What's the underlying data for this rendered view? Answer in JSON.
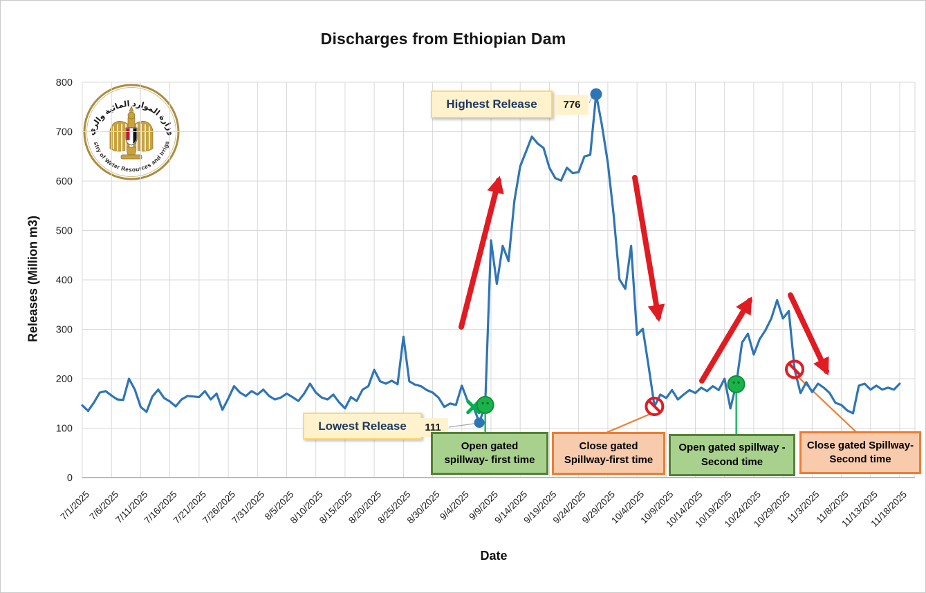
{
  "page": {
    "title": "Discharges from Ethiopian Dam"
  },
  "logo": {
    "name": "ministry-of-water-resources-and-irrigation-seal",
    "arabic": "وزارة الموارد المائية والري",
    "english": "· Ministry of Water Resources and Irrigation ·"
  },
  "chart_data": {
    "type": "line",
    "title": "Discharges from Ethiopian Dam",
    "xlabel": "Date",
    "ylabel": "Releases (Million m3)",
    "ylim": [
      0,
      800
    ],
    "ytick_step": 100,
    "ytick_labels": [
      "0",
      "100",
      "200",
      "300",
      "400",
      "500",
      "600",
      "700",
      "800"
    ],
    "grid": true,
    "line_color": "#2e75b6",
    "start_date": "7/1/2025",
    "end_date": "11/18/2025",
    "frequency": "daily",
    "x_tick_every_days": 5,
    "x_tick_labels": [
      "7/1/2025",
      "7/6/2025",
      "7/11/2025",
      "7/16/2025",
      "7/21/2025",
      "7/26/2025",
      "7/31/2025",
      "8/5/2025",
      "8/10/2025",
      "8/15/2025",
      "8/20/2025",
      "8/25/2025",
      "8/30/2025",
      "9/4/2025",
      "9/9/2025",
      "9/14/2025",
      "9/19/2025",
      "9/24/2025",
      "9/29/2025",
      "10/4/2025",
      "10/9/2025",
      "10/14/2025",
      "10/19/2025",
      "10/24/2025",
      "10/29/2025",
      "11/3/2025",
      "11/8/2025",
      "11/13/2025",
      "11/18/2025"
    ],
    "values": [
      146,
      135,
      152,
      172,
      175,
      166,
      158,
      157,
      200,
      178,
      143,
      133,
      164,
      178,
      161,
      154,
      144,
      158,
      165,
      164,
      163,
      175,
      158,
      170,
      137,
      160,
      185,
      172,
      165,
      175,
      168,
      178,
      165,
      158,
      162,
      170,
      163,
      155,
      170,
      190,
      172,
      162,
      158,
      168,
      152,
      140,
      163,
      155,
      178,
      185,
      218,
      195,
      190,
      196,
      189,
      285,
      195,
      188,
      185,
      177,
      172,
      162,
      143,
      150,
      147,
      186,
      155,
      143,
      111,
      147,
      480,
      392,
      469,
      438,
      560,
      630,
      660,
      690,
      676,
      667,
      627,
      606,
      601,
      627,
      616,
      618,
      650,
      653,
      776,
      713,
      637,
      532,
      401,
      382,
      469,
      289,
      301,
      224,
      144,
      168,
      161,
      177,
      158,
      168,
      177,
      171,
      182,
      175,
      185,
      177,
      200,
      140,
      189,
      273,
      291,
      249,
      280,
      298,
      322,
      359,
      322,
      337,
      219,
      171,
      193,
      173,
      190,
      182,
      171,
      151,
      147,
      136,
      130,
      186,
      190,
      178,
      186,
      178,
      182,
      178,
      190
    ]
  },
  "annotations": {
    "highest": {
      "label": "Highest Release",
      "value": "776",
      "index": 88
    },
    "lowest": {
      "label": "Lowest Release",
      "value": "111",
      "index": 68
    },
    "x_marker_index": 67,
    "open1": {
      "label": "Open gated\nspillway- first time",
      "index": 69
    },
    "close1": {
      "label": "Close gated\nSpillway-first time",
      "index": 98
    },
    "open2": {
      "label": "Open gated spillway -\nSecond time",
      "index": 112
    },
    "close2": {
      "label": "Close gated Spillway-\nSecond time",
      "index": 122
    }
  },
  "colors": {
    "line": "#2e75b6",
    "marker_blue": "#2e75b6",
    "marker_green": "#1cb24b",
    "marker_green_dark": "#0e8f38",
    "prohibit_red": "#e11b22",
    "arrow_red": "#e11b22",
    "green_box_fill": "#a9d18e",
    "green_box_border": "#538135",
    "orange_box_fill": "#f8cbad",
    "orange_box_border": "#ed7d31",
    "yellow_box_fill": "#fff2cc",
    "yellow_box_border": "#ffd966",
    "navy_text": "#1f3864",
    "gridline": "#d9d9d9",
    "axis_line": "#a6a6a6"
  }
}
